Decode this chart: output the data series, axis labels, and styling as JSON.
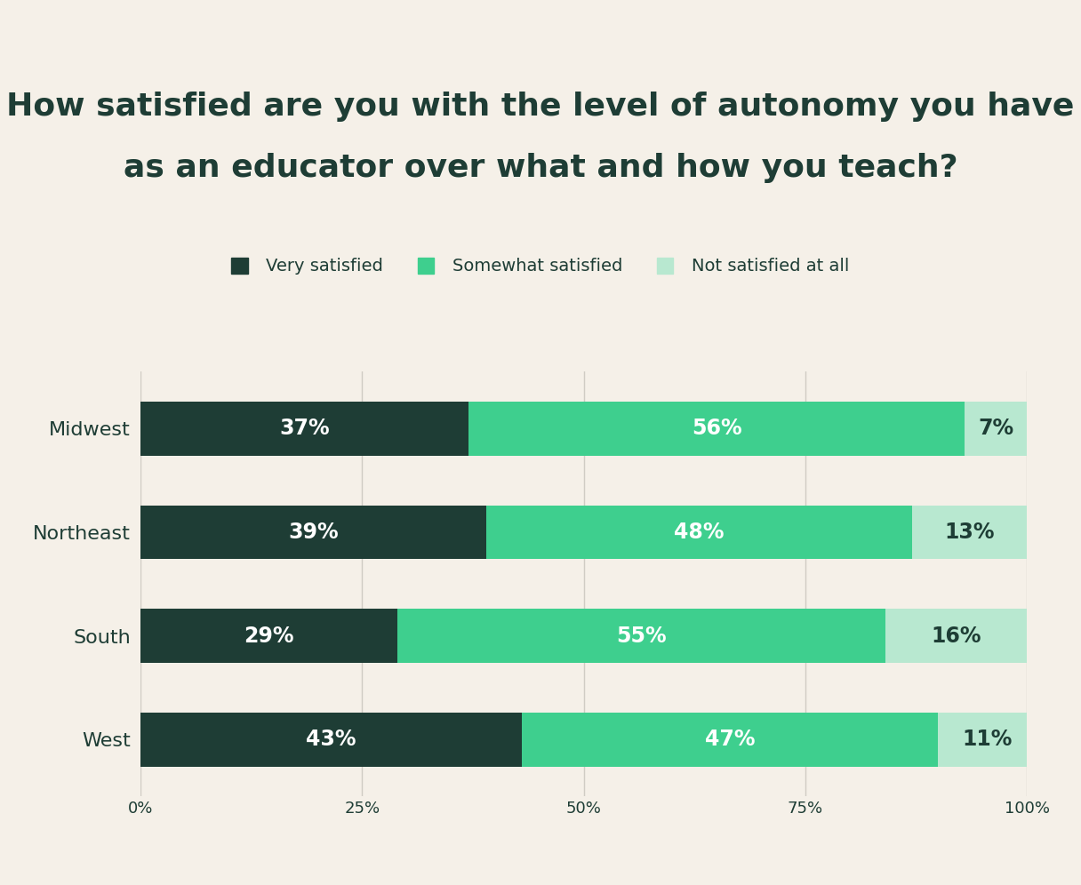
{
  "title_line1": "How satisfied are you with the level of autonomy you have",
  "title_line2": "as an educator over what and how you teach?",
  "categories": [
    "Midwest",
    "Northeast",
    "South",
    "West"
  ],
  "series": [
    {
      "label": "Very satisfied",
      "values": [
        37,
        39,
        29,
        43
      ],
      "color": "#1e3d35"
    },
    {
      "label": "Somewhat satisfied",
      "values": [
        56,
        48,
        55,
        47
      ],
      "color": "#3ecf8e"
    },
    {
      "label": "Not satisfied at all",
      "values": [
        7,
        13,
        16,
        11
      ],
      "color": "#b8e8d0"
    }
  ],
  "background_color": "#f5f0e8",
  "text_color": "#1e3d35",
  "bar_label_color_white": "#ffffff",
  "bar_label_color_dark": "#1e3d35",
  "xticks": [
    0,
    25,
    50,
    75,
    100
  ],
  "xtick_labels": [
    "0%",
    "25%",
    "50%",
    "75%",
    "100%"
  ],
  "xlim": [
    0,
    100
  ],
  "title_fontsize": 26,
  "legend_fontsize": 14,
  "tick_fontsize": 13,
  "bar_label_fontsize": 17,
  "category_fontsize": 16,
  "bar_height": 0.52,
  "grid_color": "#d0ccc4",
  "grid_linewidth": 1.0
}
